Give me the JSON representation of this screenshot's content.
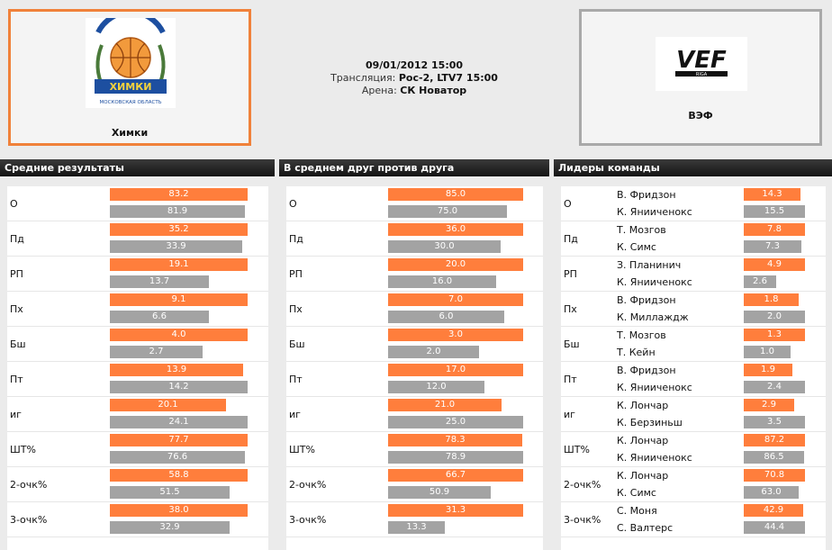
{
  "home_team": {
    "name": "Химки",
    "logo_text": "БАСКЕТБОЛЬНЫЙ КЛУБ ХИМКИ МОСКОВСКАЯ ОБЛАСТЬ"
  },
  "away_team": {
    "name": "ВЭФ",
    "logo_text": "VEF RIGA"
  },
  "match": {
    "datetime": "09/01/2012 15:00",
    "broadcast_label": "Трансляция:",
    "broadcast_value": "Рос-2, LTV7 15:00",
    "arena_label": "Арена:",
    "arena_value": "СК Новатор"
  },
  "colors": {
    "home": "#ff7e3c",
    "away": "#a3a3a3",
    "header": "#1e1e1e"
  },
  "panels": {
    "averages": {
      "title": "Средние результаты",
      "rows": [
        {
          "label": "О",
          "home": "83.2",
          "away": "81.9",
          "home_frac": 1.0,
          "away_frac": 0.98
        },
        {
          "label": "Пд",
          "home": "35.2",
          "away": "33.9",
          "home_frac": 1.0,
          "away_frac": 0.96
        },
        {
          "label": "РП",
          "home": "19.1",
          "away": "13.7",
          "home_frac": 1.0,
          "away_frac": 0.72
        },
        {
          "label": "Пх",
          "home": "9.1",
          "away": "6.6",
          "home_frac": 1.0,
          "away_frac": 0.72
        },
        {
          "label": "Бш",
          "home": "4.0",
          "away": "2.7",
          "home_frac": 1.0,
          "away_frac": 0.67
        },
        {
          "label": "Пт",
          "home": "13.9",
          "away": "14.2",
          "home_frac": 0.97,
          "away_frac": 1.0
        },
        {
          "label": "иг",
          "home": "20.1",
          "away": "24.1",
          "home_frac": 0.84,
          "away_frac": 1.0
        },
        {
          "label": "ШТ%",
          "home": "77.7",
          "away": "76.6",
          "home_frac": 1.0,
          "away_frac": 0.98
        },
        {
          "label": "2-очк%",
          "home": "58.8",
          "away": "51.5",
          "home_frac": 1.0,
          "away_frac": 0.87
        },
        {
          "label": "3-очк%",
          "home": "38.0",
          "away": "32.9",
          "home_frac": 1.0,
          "away_frac": 0.87
        }
      ]
    },
    "head_to_head": {
      "title": "В среднем друг против друга",
      "rows": [
        {
          "label": "О",
          "home": "85.0",
          "away": "75.0",
          "home_frac": 1.0,
          "away_frac": 0.88
        },
        {
          "label": "Пд",
          "home": "36.0",
          "away": "30.0",
          "home_frac": 1.0,
          "away_frac": 0.83
        },
        {
          "label": "РП",
          "home": "20.0",
          "away": "16.0",
          "home_frac": 1.0,
          "away_frac": 0.8
        },
        {
          "label": "Пх",
          "home": "7.0",
          "away": "6.0",
          "home_frac": 1.0,
          "away_frac": 0.86
        },
        {
          "label": "Бш",
          "home": "3.0",
          "away": "2.0",
          "home_frac": 1.0,
          "away_frac": 0.67
        },
        {
          "label": "Пт",
          "home": "17.0",
          "away": "12.0",
          "home_frac": 1.0,
          "away_frac": 0.71
        },
        {
          "label": "иг",
          "home": "21.0",
          "away": "25.0",
          "home_frac": 0.84,
          "away_frac": 1.0
        },
        {
          "label": "ШТ%",
          "home": "78.3",
          "away": "78.9",
          "home_frac": 0.99,
          "away_frac": 1.0
        },
        {
          "label": "2-очк%",
          "home": "66.7",
          "away": "50.9",
          "home_frac": 1.0,
          "away_frac": 0.76
        },
        {
          "label": "3-очк%",
          "home": "31.3",
          "away": "13.3",
          "home_frac": 1.0,
          "away_frac": 0.42
        }
      ]
    },
    "leaders": {
      "title": "Лидеры команды",
      "rows": [
        {
          "label": "О",
          "p1": "В. Фридзон",
          "home": "14.3",
          "p2": "К. Янииченокс",
          "away": "15.5",
          "home_frac": 0.92,
          "away_frac": 1.0
        },
        {
          "label": "Пд",
          "p1": "Т. Мозгов",
          "home": "7.8",
          "p2": "К. Симс",
          "away": "7.3",
          "home_frac": 1.0,
          "away_frac": 0.94
        },
        {
          "label": "РП",
          "p1": "З. Планинич",
          "home": "4.9",
          "p2": "К. Янииченокс",
          "away": "2.6",
          "home_frac": 1.0,
          "away_frac": 0.53
        },
        {
          "label": "Пх",
          "p1": "В. Фридзон",
          "home": "1.8",
          "p2": "К. Миллаждж",
          "away": "2.0",
          "home_frac": 0.9,
          "away_frac": 1.0
        },
        {
          "label": "Бш",
          "p1": "Т. Мозгов",
          "home": "1.3",
          "p2": "Т. Кейн",
          "away": "1.0",
          "home_frac": 1.0,
          "away_frac": 0.77
        },
        {
          "label": "Пт",
          "p1": "В. Фридзон",
          "home": "1.9",
          "p2": "К. Янииченокс",
          "away": "2.4",
          "home_frac": 0.79,
          "away_frac": 1.0
        },
        {
          "label": "иг",
          "p1": "К. Лончар",
          "home": "2.9",
          "p2": "К. Берзиньш",
          "away": "3.5",
          "home_frac": 0.83,
          "away_frac": 1.0
        },
        {
          "label": "ШТ%",
          "p1": "К. Лончар",
          "home": "87.2",
          "p2": "К. Янииченокс",
          "away": "86.5",
          "home_frac": 1.0,
          "away_frac": 0.99
        },
        {
          "label": "2-очк%",
          "p1": "К. Лончар",
          "home": "70.8",
          "p2": "К. Симс",
          "away": "63.0",
          "home_frac": 1.0,
          "away_frac": 0.89
        },
        {
          "label": "3-очк%",
          "p1": "С. Моня",
          "home": "42.9",
          "p2": "С. Валтерс",
          "away": "44.4",
          "home_frac": 0.97,
          "away_frac": 1.0
        }
      ]
    }
  }
}
